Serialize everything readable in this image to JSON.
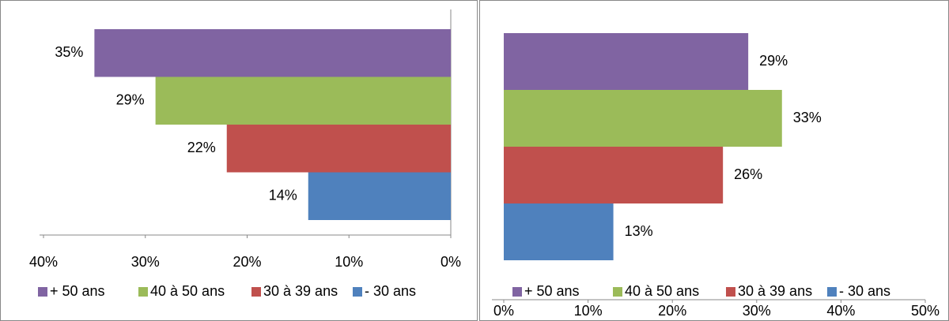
{
  "chart_data": [
    {
      "type": "bar",
      "orientation": "horizontal",
      "series": [
        {
          "name": "+ 50 ans",
          "color": "#8064a2",
          "values": [
            35
          ],
          "value_labels": [
            "35%"
          ]
        },
        {
          "name": "40 à 50 ans",
          "color": "#9bbb59",
          "values": [
            29
          ],
          "value_labels": [
            "29%"
          ]
        },
        {
          "name": "30 à 39 ans",
          "color": "#c0504d",
          "values": [
            22
          ],
          "value_labels": [
            "22%"
          ]
        },
        {
          "name": "- 30 ans",
          "color": "#4f81bd",
          "values": [
            14
          ],
          "value_labels": [
            "14%"
          ]
        }
      ],
      "xlim": [
        40,
        0
      ],
      "xticks": [
        {
          "value": 40,
          "label": "40%"
        },
        {
          "value": 30,
          "label": "30%"
        },
        {
          "value": 20,
          "label": "20%"
        },
        {
          "value": 10,
          "label": "10%"
        },
        {
          "value": 0,
          "label": "0%"
        }
      ],
      "legend": "bottom"
    },
    {
      "type": "bar",
      "orientation": "horizontal",
      "series": [
        {
          "name": "+ 50 ans",
          "color": "#8064a2",
          "values": [
            29
          ],
          "value_labels": [
            "29%"
          ]
        },
        {
          "name": "40 à 50 ans",
          "color": "#9bbb59",
          "values": [
            33
          ],
          "value_labels": [
            "33%"
          ]
        },
        {
          "name": "30 à 39 ans",
          "color": "#c0504d",
          "values": [
            26
          ],
          "value_labels": [
            "26%"
          ]
        },
        {
          "name": "- 30 ans",
          "color": "#4f81bd",
          "values": [
            13
          ],
          "value_labels": [
            "13%"
          ]
        }
      ],
      "xlim": [
        0,
        50
      ],
      "xticks": [
        {
          "value": 0,
          "label": "0%"
        },
        {
          "value": 10,
          "label": "10%"
        },
        {
          "value": 20,
          "label": "20%"
        },
        {
          "value": 30,
          "label": "30%"
        },
        {
          "value": 40,
          "label": "40%"
        },
        {
          "value": 50,
          "label": "50%"
        }
      ],
      "legend": "bottom"
    }
  ]
}
